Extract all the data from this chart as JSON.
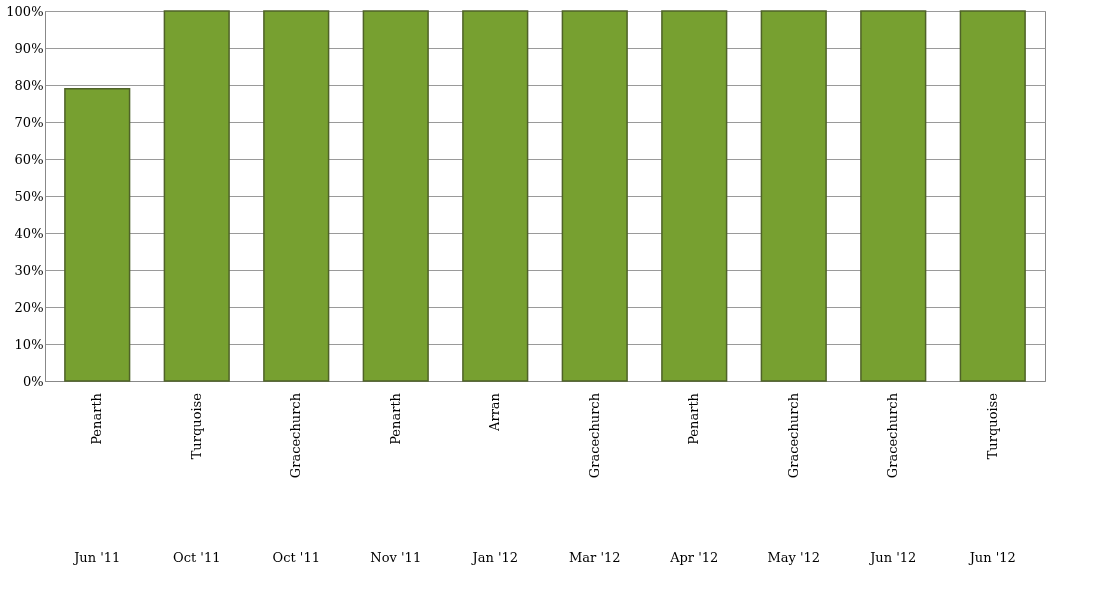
{
  "chart_data": {
    "type": "bar",
    "categories": [
      "Jun '11\nPenarth",
      "Oct '11\nTurquoise",
      "Oct '11\nGracechurch",
      "Nov '11\nPenarth",
      "Jan '12\nArran",
      "Mar '12\nGracechurch",
      "Apr '12\nPenarth",
      "May '12\nGracechurch",
      "Jun '12\nGracechurch",
      "Jun '12\nTurquoise"
    ],
    "values": [
      0.79,
      1,
      1,
      1,
      1,
      1,
      1,
      1,
      1,
      1
    ],
    "color": "#77a030",
    "ylim": [
      0,
      1
    ],
    "yticks": [
      {
        "value": 0,
        "label": "0%"
      },
      {
        "value": 0.1,
        "label": "10%"
      },
      {
        "value": 0.2,
        "label": "20%"
      },
      {
        "value": 0.3,
        "label": "30%"
      },
      {
        "value": 0.4,
        "label": "40%"
      },
      {
        "value": 0.5,
        "label": "50%"
      },
      {
        "value": 0.6,
        "label": "60%"
      },
      {
        "value": 0.7,
        "label": "70%"
      },
      {
        "value": 0.8,
        "label": "80%"
      },
      {
        "value": 0.9,
        "label": "90%"
      },
      {
        "value": 1,
        "label": "100%"
      }
    ],
    "grid": "y"
  }
}
